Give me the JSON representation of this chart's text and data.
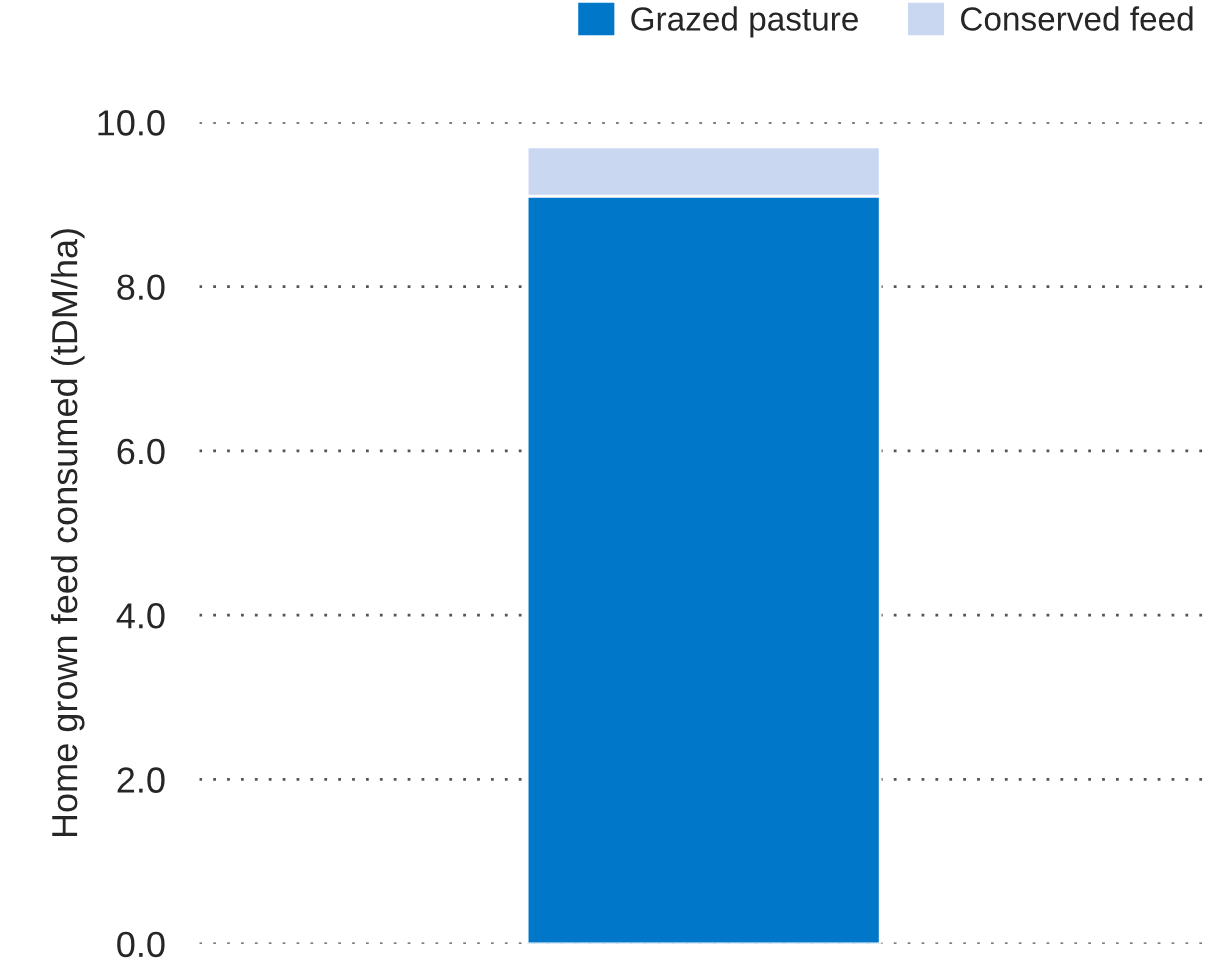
{
  "chart_data": {
    "type": "bar",
    "stacked": true,
    "ylabel": "Home grown feed consumed (tDM/ha)",
    "categories": [
      null
    ],
    "series": [
      {
        "name": "Grazed pasture",
        "color": "#0077c8",
        "values": [
          9.1
        ]
      },
      {
        "name": "Conserved feed",
        "color": "#c9d8f0",
        "values": [
          0.6
        ]
      }
    ],
    "ylim": [
      0,
      10
    ],
    "yticks": [
      {
        "value": 0,
        "label": "0.0"
      },
      {
        "value": 2,
        "label": "2.0"
      },
      {
        "value": 4,
        "label": "4.0"
      },
      {
        "value": 6,
        "label": "6.0"
      },
      {
        "value": 8,
        "label": "8.0"
      },
      {
        "value": 10,
        "label": "10.0"
      }
    ],
    "grid": "y",
    "legend": "top right"
  }
}
